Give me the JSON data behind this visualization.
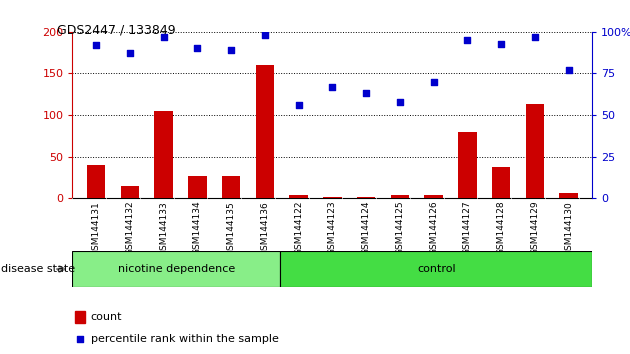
{
  "title": "GDS2447 / 133849",
  "categories": [
    "GSM144131",
    "GSM144132",
    "GSM144133",
    "GSM144134",
    "GSM144135",
    "GSM144136",
    "GSM144122",
    "GSM144123",
    "GSM144124",
    "GSM144125",
    "GSM144126",
    "GSM144127",
    "GSM144128",
    "GSM144129",
    "GSM144130"
  ],
  "count_values": [
    40,
    15,
    105,
    27,
    27,
    160,
    4,
    1,
    1,
    4,
    4,
    80,
    38,
    113,
    6
  ],
  "percentile_values": [
    92,
    87,
    97,
    90,
    89,
    98,
    56,
    67,
    63,
    58,
    70,
    95,
    93,
    97,
    77
  ],
  "group1_label": "nicotine dependence",
  "group2_label": "control",
  "group1_count": 6,
  "group2_count": 9,
  "disease_state_label": "disease state",
  "legend_count": "count",
  "legend_percentile": "percentile rank within the sample",
  "bar_color": "#cc0000",
  "dot_color": "#0000cc",
  "group1_color": "#88ee88",
  "group2_color": "#44dd44",
  "ylim_left": [
    0,
    200
  ],
  "ylim_right": [
    0,
    100
  ],
  "yticks_left": [
    0,
    50,
    100,
    150,
    200
  ],
  "yticks_right": [
    0,
    25,
    50,
    75,
    100
  ],
  "tick_area_color": "#c0c0c0",
  "fig_bg": "#ffffff"
}
